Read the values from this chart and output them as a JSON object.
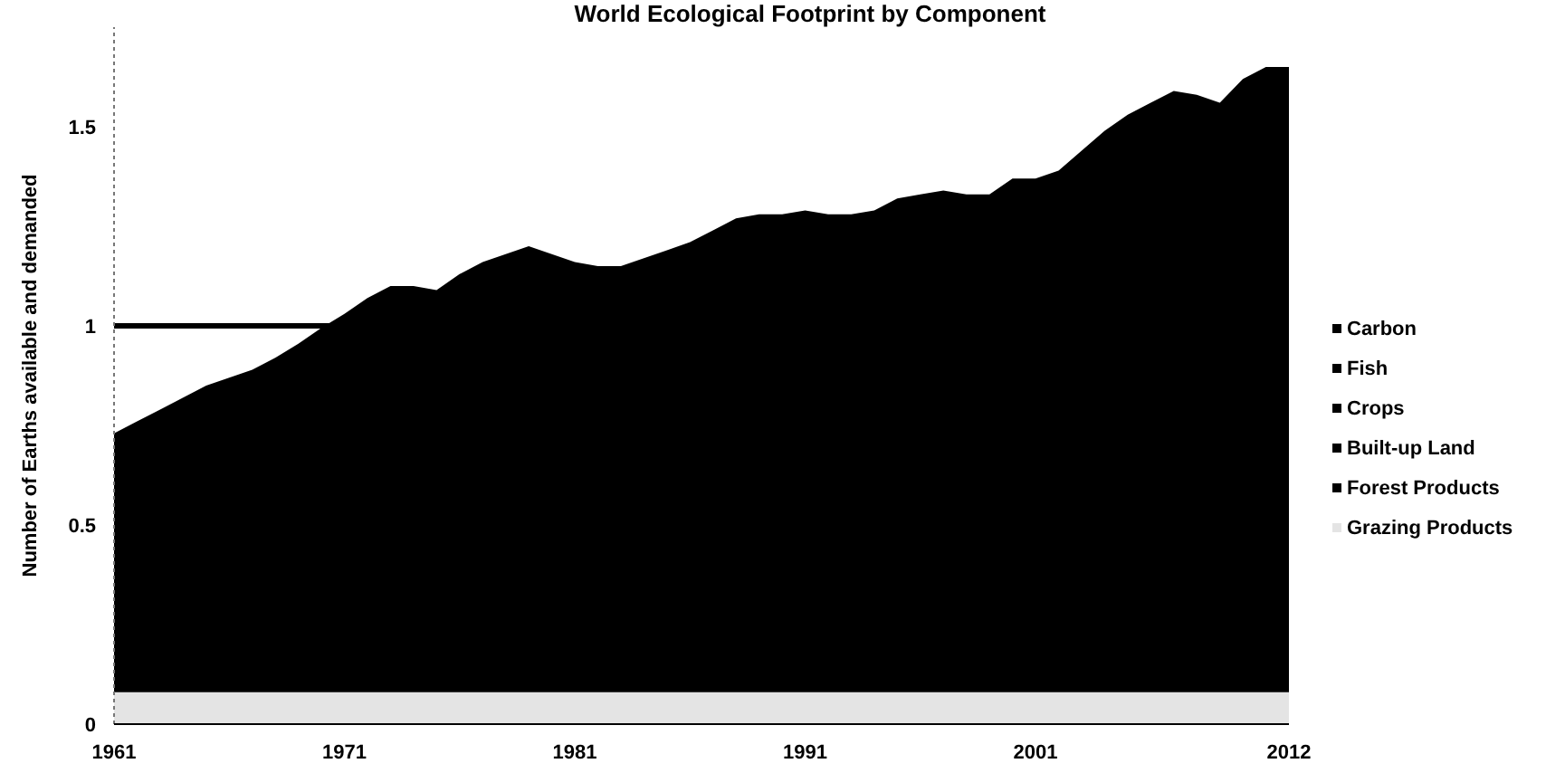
{
  "chart_data": {
    "type": "area",
    "title": "World Ecological Footprint by Component",
    "ylabel": "Number of Earths available and demanded",
    "stacked": true,
    "x": [
      1961,
      1962,
      1963,
      1964,
      1965,
      1966,
      1967,
      1968,
      1969,
      1970,
      1971,
      1972,
      1973,
      1974,
      1975,
      1976,
      1977,
      1978,
      1979,
      1980,
      1981,
      1982,
      1983,
      1984,
      1985,
      1986,
      1987,
      1988,
      1989,
      1990,
      1991,
      1992,
      1993,
      1994,
      1995,
      1996,
      1997,
      1998,
      1999,
      2000,
      2001,
      2002,
      2003,
      2004,
      2005,
      2006,
      2007,
      2008,
      2009,
      2010,
      2011,
      2012
    ],
    "series": [
      {
        "name": "Grazing Products",
        "color": "#e4e4e4",
        "values": [
          0.08,
          0.08,
          0.08,
          0.08,
          0.08,
          0.08,
          0.08,
          0.08,
          0.08,
          0.08,
          0.08,
          0.08,
          0.08,
          0.08,
          0.08,
          0.08,
          0.08,
          0.08,
          0.08,
          0.08,
          0.08,
          0.08,
          0.08,
          0.08,
          0.08,
          0.08,
          0.08,
          0.08,
          0.08,
          0.08,
          0.08,
          0.08,
          0.08,
          0.08,
          0.08,
          0.08,
          0.08,
          0.08,
          0.08,
          0.08,
          0.08,
          0.08,
          0.08,
          0.08,
          0.08,
          0.08,
          0.08,
          0.08,
          0.08,
          0.08,
          0.08,
          0.08
        ]
      },
      {
        "color": "#000000",
        "values": [
          0.65,
          0.68,
          0.71,
          0.74,
          0.77,
          0.79,
          0.81,
          0.84,
          0.875,
          0.915,
          0.95,
          0.99,
          1.02,
          1.02,
          1.01,
          1.05,
          1.08,
          1.1,
          1.12,
          1.1,
          1.08,
          1.07,
          1.07,
          1.09,
          1.11,
          1.13,
          1.16,
          1.19,
          1.2,
          1.2,
          1.21,
          1.2,
          1.2,
          1.21,
          1.24,
          1.25,
          1.26,
          1.25,
          1.25,
          1.29,
          1.29,
          1.31,
          1.36,
          1.41,
          1.45,
          1.48,
          1.51,
          1.5,
          1.48,
          1.54,
          1.57,
          1.57
        ]
      },
      {
        "name": "Forest Products",
        "color": "#000000",
        "values": [
          null,
          null,
          null,
          null,
          null,
          null,
          null,
          null,
          null,
          null,
          null,
          null,
          null,
          null,
          null,
          null,
          null,
          null,
          null,
          null,
          null,
          null,
          null,
          null,
          null,
          null,
          null,
          null,
          null,
          null,
          null,
          null,
          null,
          null,
          null,
          null,
          null,
          null,
          null,
          null,
          null,
          null,
          null,
          null,
          null,
          null,
          null,
          null,
          null,
          null,
          null,
          null
        ]
      },
      {
        "name": "Built-up Land",
        "color": "#000000",
        "values": [
          null,
          null,
          null,
          null,
          null,
          null,
          null,
          null,
          null,
          null,
          null,
          null,
          null,
          null,
          null,
          null,
          null,
          null,
          null,
          null,
          null,
          null,
          null,
          null,
          null,
          null,
          null,
          null,
          null,
          null,
          null,
          null,
          null,
          null,
          null,
          null,
          null,
          null,
          null,
          null,
          null,
          null,
          null,
          null,
          null,
          null,
          null,
          null,
          null,
          null,
          null,
          null
        ]
      },
      {
        "name": "Crops",
        "color": "#000000",
        "values": [
          null,
          null,
          null,
          null,
          null,
          null,
          null,
          null,
          null,
          null,
          null,
          null,
          null,
          null,
          null,
          null,
          null,
          null,
          null,
          null,
          null,
          null,
          null,
          null,
          null,
          null,
          null,
          null,
          null,
          null,
          null,
          null,
          null,
          null,
          null,
          null,
          null,
          null,
          null,
          null,
          null,
          null,
          null,
          null,
          null,
          null,
          null,
          null,
          null,
          null,
          null,
          null
        ]
      },
      {
        "name": "Fish",
        "color": "#000000",
        "values": [
          null,
          null,
          null,
          null,
          null,
          null,
          null,
          null,
          null,
          null,
          null,
          null,
          null,
          null,
          null,
          null,
          null,
          null,
          null,
          null,
          null,
          null,
          null,
          null,
          null,
          null,
          null,
          null,
          null,
          null,
          null,
          null,
          null,
          null,
          null,
          null,
          null,
          null,
          null,
          null,
          null,
          null,
          null,
          null,
          null,
          null,
          null,
          null,
          null,
          null,
          null,
          null
        ]
      },
      {
        "name": "Carbon",
        "color": "#000000",
        "values": [
          null,
          null,
          null,
          null,
          null,
          null,
          null,
          null,
          null,
          null,
          null,
          null,
          null,
          null,
          null,
          null,
          null,
          null,
          null,
          null,
          null,
          null,
          null,
          null,
          null,
          null,
          null,
          null,
          null,
          null,
          null,
          null,
          null,
          null,
          null,
          null,
          null,
          null,
          null,
          null,
          null,
          null,
          null,
          null,
          null,
          null,
          null,
          null,
          null,
          null,
          null,
          null
        ]
      }
    ],
    "xlim": [
      1961,
      2012
    ],
    "xticks": [
      1961,
      1971,
      1981,
      1991,
      2001,
      2012
    ],
    "ylim": [
      0,
      1.75
    ],
    "yticks": [
      0,
      0.5,
      1,
      1.5
    ],
    "ref_lines": [
      {
        "axis": "y",
        "value": 1,
        "color": "#000000"
      }
    ],
    "legend": "right"
  }
}
